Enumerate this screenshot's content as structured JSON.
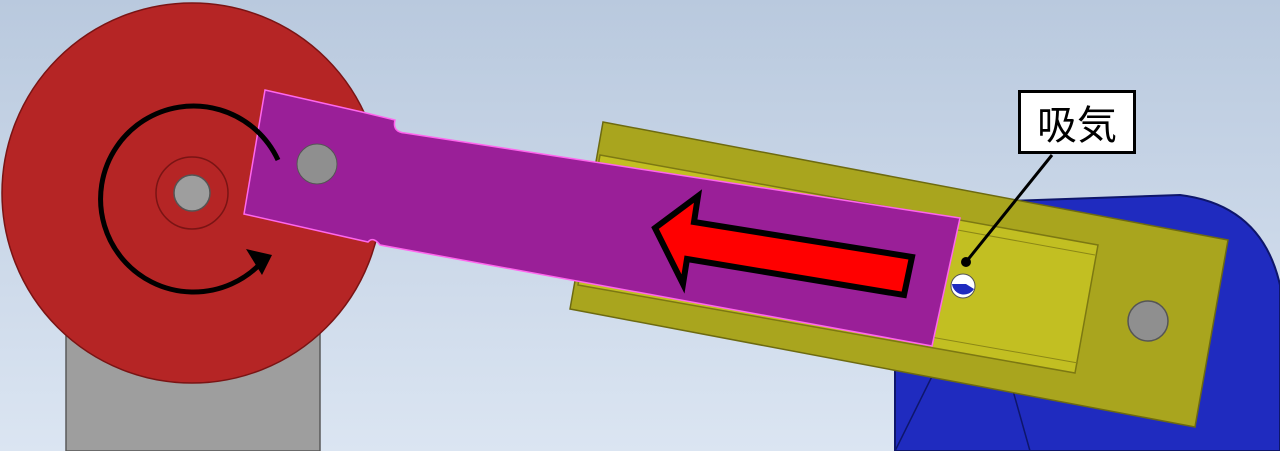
{
  "callout": {
    "label": "吸気"
  },
  "colors": {
    "background_top": "#b9c9de",
    "background_bottom": "#dbe5f2",
    "crank_wheel": "#b52525",
    "support_base": "#9e9e9e",
    "connecting_rod": "#9a1f98",
    "cylinder": "#a9a51e",
    "cylinder_bore": "#c2bf22",
    "mount_bracket": "#1f2bbf",
    "pin": "#8f8f8f",
    "motion_arrow": "#ff0000"
  },
  "icons": [
    "rotation-arrow-icon",
    "left-arrow-icon"
  ]
}
